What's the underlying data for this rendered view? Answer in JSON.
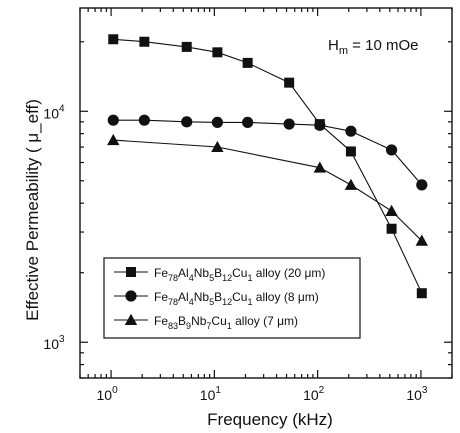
{
  "chart_data": {
    "type": "line",
    "title": "",
    "xlabel": "Frequency (kHz)",
    "ylabel": "Effective Permeability ( μ_eff)",
    "x_scale": "log",
    "y_scale": "log",
    "xlim": [
      0.5,
      2000
    ],
    "ylim": [
      700,
      28000
    ],
    "x_ticks": [
      {
        "value": 1,
        "base": "10",
        "exp": "0"
      },
      {
        "value": 10,
        "base": "10",
        "exp": "1"
      },
      {
        "value": 100,
        "base": "10",
        "exp": "2"
      },
      {
        "value": 1000,
        "base": "10",
        "exp": "3"
      }
    ],
    "y_ticks": [
      {
        "value": 1000,
        "base": "10",
        "exp": "3"
      },
      {
        "value": 10000,
        "base": "10",
        "exp": "4"
      }
    ],
    "grid": false,
    "legend_position": "bottom-left",
    "annotation": {
      "main": "H",
      "sub": "m",
      "rest": " = 10 mOe"
    },
    "series": [
      {
        "name": "Fe78Al4Nb5B12Cu1 alloy (20 μm)",
        "legend_parts": [
          {
            "t": "Fe"
          },
          {
            "t": "78",
            "sub": true
          },
          {
            "t": "Al"
          },
          {
            "t": "4",
            "sub": true
          },
          {
            "t": "Nb"
          },
          {
            "t": "5",
            "sub": true
          },
          {
            "t": "B"
          },
          {
            "t": "12",
            "sub": true
          },
          {
            "t": "Cu"
          },
          {
            "t": "1",
            "sub": true
          },
          {
            "t": " alloy (20 μm)"
          }
        ],
        "marker": "square",
        "points": [
          [
            1.05,
            20500
          ],
          [
            2.1,
            20000
          ],
          [
            5.4,
            19000
          ],
          [
            10.7,
            18000
          ],
          [
            21,
            16200
          ],
          [
            53,
            13300
          ],
          [
            105,
            8800
          ],
          [
            210,
            6700
          ],
          [
            520,
            3100
          ],
          [
            1020,
            1630
          ]
        ]
      },
      {
        "name": "Fe78Al4Nb5B12Cu1 alloy (8 μm)",
        "legend_parts": [
          {
            "t": "Fe"
          },
          {
            "t": "78",
            "sub": true
          },
          {
            "t": "Al"
          },
          {
            "t": "4",
            "sub": true
          },
          {
            "t": "Nb"
          },
          {
            "t": "5",
            "sub": true
          },
          {
            "t": "B"
          },
          {
            "t": "12",
            "sub": true
          },
          {
            "t": "Cu"
          },
          {
            "t": "1",
            "sub": true
          },
          {
            "t": " alloy (8 μm)"
          }
        ],
        "marker": "circle",
        "points": [
          [
            1.05,
            9150
          ],
          [
            2.1,
            9150
          ],
          [
            5.4,
            9000
          ],
          [
            10.7,
            8950
          ],
          [
            21,
            8950
          ],
          [
            53,
            8800
          ],
          [
            105,
            8700
          ],
          [
            210,
            8200
          ],
          [
            520,
            6800
          ],
          [
            1020,
            4800
          ]
        ]
      },
      {
        "name": "Fe83B9Nb7Cu1 alloy (7 μm)",
        "legend_parts": [
          {
            "t": "Fe"
          },
          {
            "t": "83",
            "sub": true
          },
          {
            "t": "B"
          },
          {
            "t": "9",
            "sub": true
          },
          {
            "t": "Nb"
          },
          {
            "t": "7",
            "sub": true
          },
          {
            "t": "Cu"
          },
          {
            "t": "1",
            "sub": true
          },
          {
            "t": " alloy (7 μm)"
          }
        ],
        "marker": "triangle",
        "points": [
          [
            1.05,
            7500
          ],
          [
            10.7,
            7000
          ],
          [
            105,
            5700
          ],
          [
            210,
            4800
          ],
          [
            520,
            3700
          ],
          [
            1020,
            2750
          ]
        ]
      }
    ]
  }
}
